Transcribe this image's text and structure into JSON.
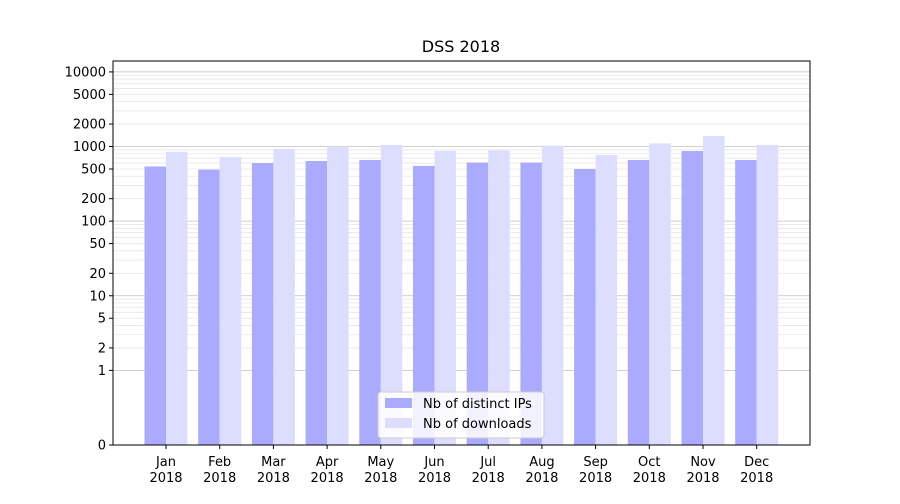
{
  "chart_data": {
    "type": "bar",
    "title": "DSS 2018",
    "xlabel": "",
    "ylabel": "",
    "yscale": "symlog",
    "ylim": [
      0,
      14000
    ],
    "yticks": [
      0,
      1,
      2,
      5,
      10,
      20,
      50,
      100,
      200,
      500,
      1000,
      2000,
      5000,
      10000
    ],
    "ytick_labels": [
      "0",
      "1",
      "2",
      "5",
      "10",
      "20",
      "50",
      "100",
      "200",
      "500",
      "1000",
      "2000",
      "5000",
      "10000"
    ],
    "categories": [
      "Jan\n2018",
      "Feb\n2018",
      "Mar\n2018",
      "Apr\n2018",
      "May\n2018",
      "Jun\n2018",
      "Jul\n2018",
      "Aug\n2018",
      "Sep\n2018",
      "Oct\n2018",
      "Nov\n2018",
      "Dec\n2018"
    ],
    "series": [
      {
        "name": "Nb of distinct IPs",
        "color": "#aaaaff",
        "values": [
          540,
          490,
          600,
          640,
          660,
          550,
          610,
          610,
          500,
          660,
          870,
          660
        ]
      },
      {
        "name": "Nb of downloads",
        "color": "#ddddff",
        "values": [
          850,
          720,
          930,
          1000,
          1050,
          870,
          890,
          1030,
          770,
          1100,
          1380,
          1050
        ]
      }
    ],
    "grid": true,
    "legend_position": "lower center"
  }
}
